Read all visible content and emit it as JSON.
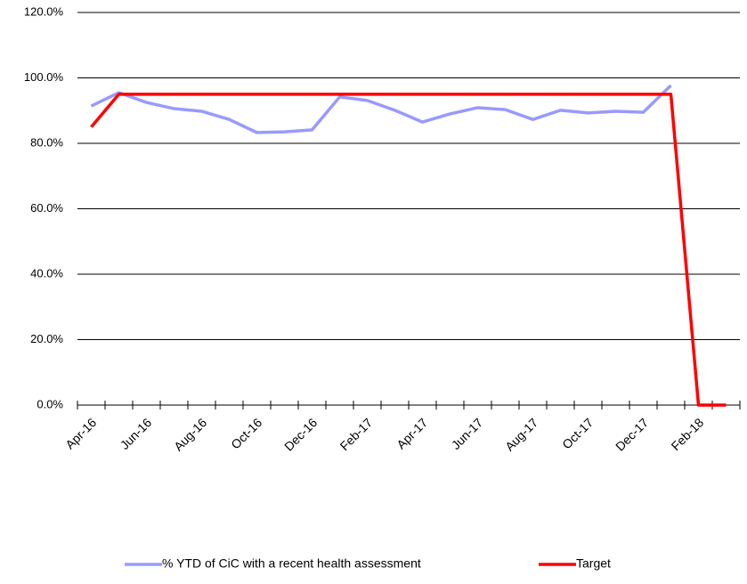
{
  "chart_data": {
    "type": "line",
    "categories": [
      "Apr-16",
      null,
      "Jun-16",
      null,
      "Aug-16",
      null,
      "Oct-16",
      null,
      "Dec-16",
      null,
      "Feb-17",
      null,
      "Apr-17",
      null,
      "Jun-17",
      null,
      "Aug-17",
      null,
      "Oct-17",
      null,
      "Dec-17",
      null,
      "Feb-18",
      null
    ],
    "series": [
      {
        "name": "% YTD of CiC with a recent health assessment",
        "color": "#9999ff",
        "values": [
          91.4,
          95.5,
          92.5,
          90.6,
          89.8,
          87.3,
          83.3,
          83.5,
          84.1,
          94.2,
          93.1,
          90.1,
          86.5,
          89.0,
          90.9,
          90.3,
          87.3,
          90.1,
          89.3,
          89.8,
          89.5,
          97.7,
          null,
          null
        ]
      },
      {
        "name": "Target",
        "color": "#ff0000",
        "values": [
          85,
          95,
          95,
          95,
          95,
          95,
          95,
          95,
          95,
          95,
          95,
          95,
          95,
          95,
          95,
          95,
          95,
          95,
          95,
          95,
          95,
          95,
          0,
          0
        ]
      }
    ],
    "ylim": [
      0,
      120
    ],
    "yticks": [
      {
        "value": 0,
        "label": "0.0%"
      },
      {
        "value": 20,
        "label": "20.0%"
      },
      {
        "value": 40,
        "label": "40.0%"
      },
      {
        "value": 60,
        "label": "60.0%"
      },
      {
        "value": 80,
        "label": "80.0%"
      },
      {
        "value": 100,
        "label": "100.0%"
      },
      {
        "value": 120,
        "label": "120.0%"
      }
    ],
    "grid": true
  }
}
